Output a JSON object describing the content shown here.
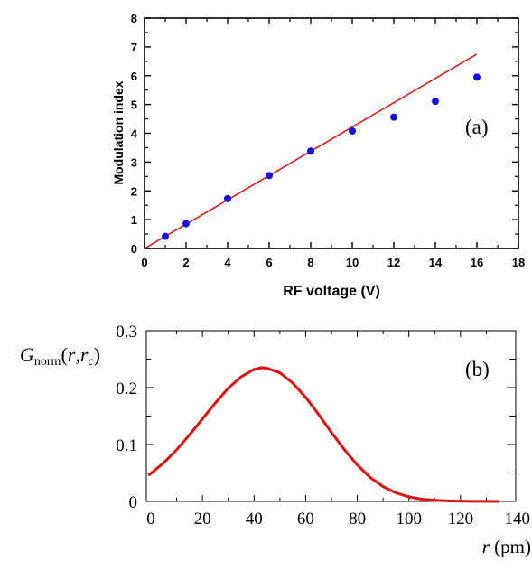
{
  "chart_data": [
    {
      "type": "scatter",
      "panel_label": "(a)",
      "xlabel": "RF voltage (V)",
      "ylabel": "Modulation index",
      "xlim": [
        0,
        18
      ],
      "ylim": [
        0,
        8
      ],
      "xticks": [
        "0",
        "2",
        "4",
        "6",
        "8",
        "10",
        "12",
        "14",
        "16",
        "18"
      ],
      "yticks": [
        "0",
        "1",
        "2",
        "3",
        "4",
        "5",
        "6",
        "7",
        "8"
      ],
      "grid": false,
      "colors": {
        "points": "#1010e0",
        "fit_line": "#e01010"
      },
      "series": [
        {
          "type": "scatter",
          "x": [
            1,
            2,
            4,
            6,
            8,
            10,
            12,
            14,
            16
          ],
          "y": [
            0.42,
            0.86,
            1.73,
            2.53,
            3.38,
            4.08,
            4.56,
            5.11,
            5.95
          ]
        },
        {
          "type": "line",
          "x": [
            0,
            16
          ],
          "y": [
            0,
            6.75
          ]
        }
      ]
    },
    {
      "type": "line",
      "panel_label": "(b)",
      "ylabel_main": "G",
      "ylabel_sub": "norm",
      "ylabel_args_open": "(",
      "ylabel_r": "r",
      "ylabel_comma": ",",
      "ylabel_rc": "r",
      "ylabel_rc_sub": "c",
      "ylabel_close": ")",
      "xlabel_var": "r",
      "xlabel_unit": " (pm)",
      "xlim": [
        0,
        140
      ],
      "ylim": [
        0,
        0.3
      ],
      "xticks": [
        "0",
        "20",
        "40",
        "60",
        "80",
        "100",
        "120",
        "140"
      ],
      "yticks": [
        "0",
        "0.1",
        "0.2",
        "0.3"
      ],
      "grid": false,
      "colors": {
        "curve": "#e01010"
      },
      "series": [
        {
          "x": [
            -1,
            0,
            5,
            10,
            15,
            20,
            25,
            30,
            35,
            40,
            43,
            45,
            50,
            55,
            60,
            65,
            70,
            75,
            80,
            85,
            90,
            95,
            100,
            105,
            110,
            115,
            120,
            125,
            130,
            135
          ],
          "y": [
            0.046,
            0.049,
            0.068,
            0.091,
            0.117,
            0.145,
            0.173,
            0.199,
            0.219,
            0.232,
            0.235,
            0.234,
            0.226,
            0.208,
            0.183,
            0.153,
            0.121,
            0.091,
            0.064,
            0.042,
            0.026,
            0.015,
            0.008,
            0.004,
            0.002,
            0.001,
            0.0004,
            0.0002,
            0.0001,
            0.0
          ]
        }
      ]
    }
  ]
}
